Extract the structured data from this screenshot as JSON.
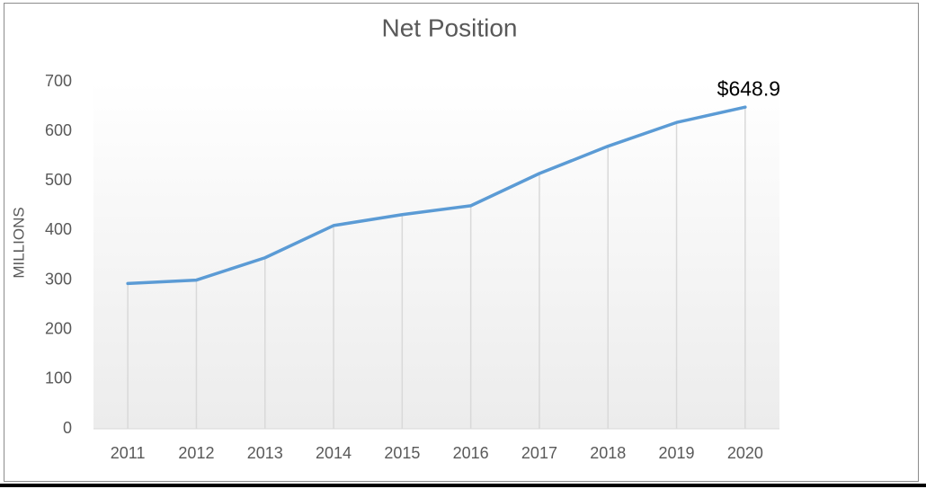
{
  "chart_data": {
    "type": "line",
    "title": "Net Position",
    "y_label": "MILLIONS",
    "categories": [
      "2011",
      "2012",
      "2013",
      "2014",
      "2015",
      "2016",
      "2017",
      "2018",
      "2019",
      "2020"
    ],
    "series": [
      {
        "name": "Net Position",
        "color": "#5b9bd5",
        "values": [
          293,
          300,
          345,
          410,
          432,
          450,
          515,
          570,
          618,
          648.9
        ],
        "value_labels": [
          null,
          null,
          null,
          null,
          null,
          null,
          null,
          null,
          null,
          "$648.9"
        ]
      }
    ],
    "ylim": [
      0,
      700
    ],
    "yticks": [
      0,
      100,
      200,
      300,
      400,
      500,
      600,
      700
    ],
    "drop_lines": true
  }
}
